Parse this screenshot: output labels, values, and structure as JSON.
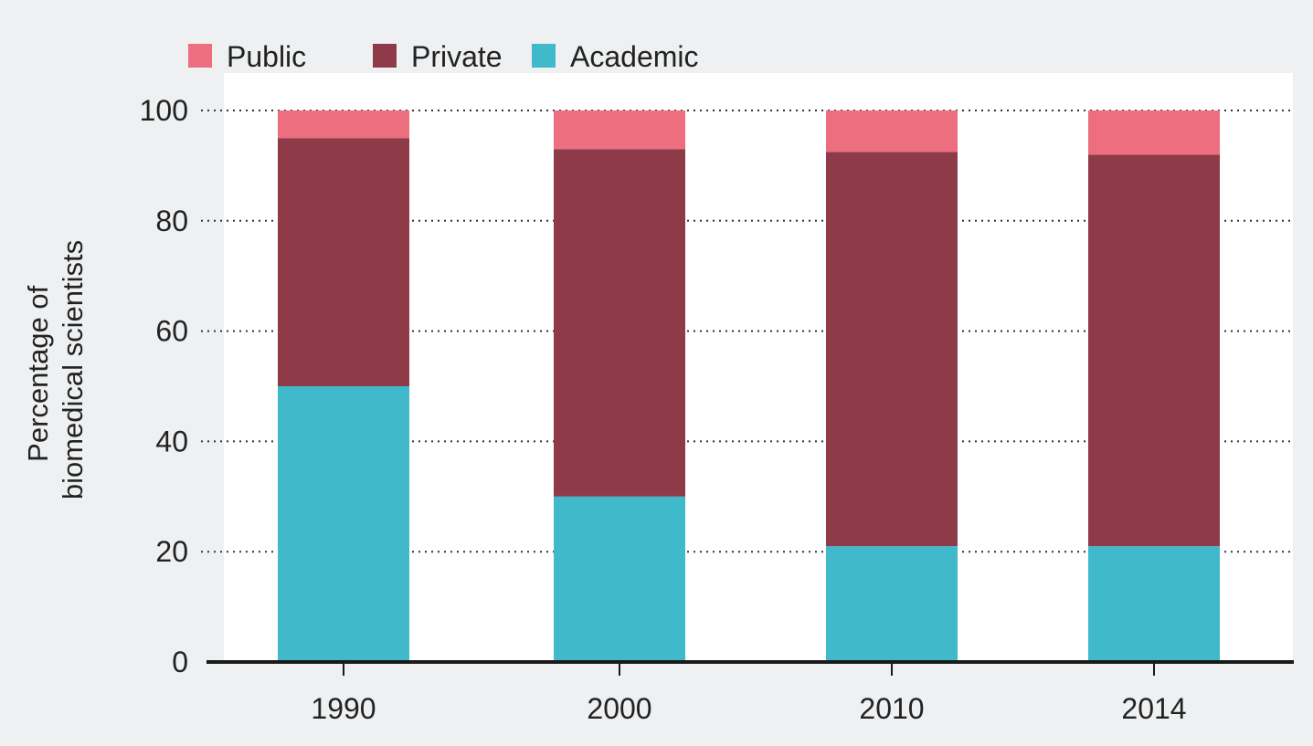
{
  "chart_data": {
    "type": "bar",
    "stacked": true,
    "categories": [
      "1990",
      "2000",
      "2010",
      "2014"
    ],
    "series": [
      {
        "name": "Academic",
        "color": "#40b9cb",
        "values": [
          50,
          30,
          21,
          21
        ]
      },
      {
        "name": "Private",
        "color": "#8e3a48",
        "values": [
          45,
          63,
          71.5,
          71
        ]
      },
      {
        "name": "Public",
        "color": "#ec6e7f",
        "values": [
          5,
          7,
          7.5,
          8
        ]
      }
    ],
    "legend": {
      "placement": "top-left",
      "order": [
        "Public",
        "Private",
        "Academic"
      ]
    },
    "ylabel_lines": [
      "Percentage of",
      "biomedical scientists"
    ],
    "ylim": [
      0,
      100
    ],
    "yticks": [
      0,
      20,
      40,
      60,
      80,
      100
    ],
    "grid": "horizontal-dotted",
    "colors": {
      "page_background": "#eef0f2",
      "plot_background": "#ffffff",
      "axis": "#1a1a1a"
    }
  }
}
